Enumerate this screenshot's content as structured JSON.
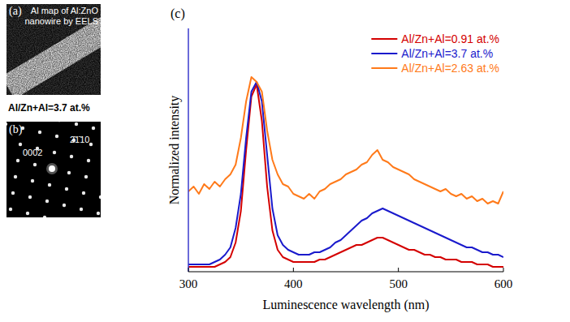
{
  "chart_data": {
    "type": "line",
    "xlabel": "Luminescence wavelength (nm)",
    "ylabel": "Normalized intensity",
    "x": [
      300,
      305,
      310,
      315,
      320,
      325,
      330,
      335,
      340,
      345,
      350,
      355,
      360,
      365,
      370,
      375,
      380,
      385,
      390,
      395,
      400,
      405,
      410,
      415,
      420,
      425,
      430,
      435,
      440,
      445,
      450,
      455,
      460,
      465,
      470,
      475,
      480,
      485,
      490,
      495,
      500,
      505,
      510,
      515,
      520,
      525,
      530,
      535,
      540,
      545,
      550,
      555,
      560,
      565,
      570,
      575,
      580,
      585,
      590,
      595,
      600
    ],
    "xlim": [
      300,
      600
    ],
    "xticks": [
      300,
      400,
      500,
      600
    ],
    "ylim": [
      0,
      1
    ],
    "tick_labels": "x",
    "grid": false,
    "legend": "upper right",
    "series": [
      {
        "name": "Al/Zn+Al=0.91 at.%",
        "color": "#d40000",
        "values": [
          0.02,
          0.02,
          0.02,
          0.02,
          0.02,
          0.02,
          0.03,
          0.04,
          0.06,
          0.12,
          0.25,
          0.5,
          0.72,
          0.77,
          0.62,
          0.35,
          0.17,
          0.09,
          0.06,
          0.05,
          0.04,
          0.04,
          0.04,
          0.04,
          0.04,
          0.05,
          0.05,
          0.06,
          0.07,
          0.08,
          0.09,
          0.1,
          0.11,
          0.11,
          0.12,
          0.13,
          0.14,
          0.14,
          0.13,
          0.12,
          0.11,
          0.1,
          0.09,
          0.09,
          0.08,
          0.07,
          0.07,
          0.06,
          0.06,
          0.05,
          0.05,
          0.05,
          0.04,
          0.04,
          0.04,
          0.03,
          0.03,
          0.03,
          0.02,
          0.02,
          0.02
        ]
      },
      {
        "name": "Al/Zn+Al=3.7 at.%",
        "color": "#1a1acc",
        "values": [
          0.03,
          0.03,
          0.03,
          0.03,
          0.03,
          0.04,
          0.05,
          0.07,
          0.1,
          0.18,
          0.32,
          0.55,
          0.74,
          0.78,
          0.7,
          0.48,
          0.26,
          0.15,
          0.11,
          0.09,
          0.08,
          0.07,
          0.07,
          0.07,
          0.08,
          0.08,
          0.09,
          0.1,
          0.12,
          0.13,
          0.15,
          0.17,
          0.19,
          0.21,
          0.22,
          0.24,
          0.25,
          0.26,
          0.25,
          0.24,
          0.23,
          0.22,
          0.21,
          0.2,
          0.19,
          0.18,
          0.17,
          0.16,
          0.15,
          0.14,
          0.13,
          0.12,
          0.11,
          0.1,
          0.1,
          0.09,
          0.08,
          0.08,
          0.07,
          0.07,
          0.06
        ]
      },
      {
        "name": "Al/Zn+Al=2.63 at.%",
        "color": "#ff7a1a",
        "values": [
          0.33,
          0.35,
          0.32,
          0.36,
          0.34,
          0.37,
          0.35,
          0.38,
          0.4,
          0.44,
          0.55,
          0.7,
          0.8,
          0.78,
          0.74,
          0.58,
          0.46,
          0.4,
          0.36,
          0.35,
          0.32,
          0.31,
          0.3,
          0.32,
          0.3,
          0.33,
          0.34,
          0.36,
          0.37,
          0.38,
          0.4,
          0.41,
          0.42,
          0.44,
          0.45,
          0.48,
          0.5,
          0.46,
          0.45,
          0.43,
          0.42,
          0.41,
          0.4,
          0.38,
          0.37,
          0.36,
          0.35,
          0.34,
          0.33,
          0.34,
          0.32,
          0.31,
          0.32,
          0.3,
          0.31,
          0.29,
          0.3,
          0.28,
          0.29,
          0.28,
          0.33
        ]
      }
    ]
  },
  "figure": {
    "panels": [
      {
        "letter": "(a)",
        "title_lines": [
          "Al map of Al:ZnO",
          "nanowire by EELS"
        ],
        "caption": "Al/Zn+Al=3.7 at.%"
      },
      {
        "letter": "(b)",
        "spot_labels": [
          "0002",
          "2̄1̄10"
        ]
      },
      {
        "letter": "(c)"
      }
    ]
  }
}
